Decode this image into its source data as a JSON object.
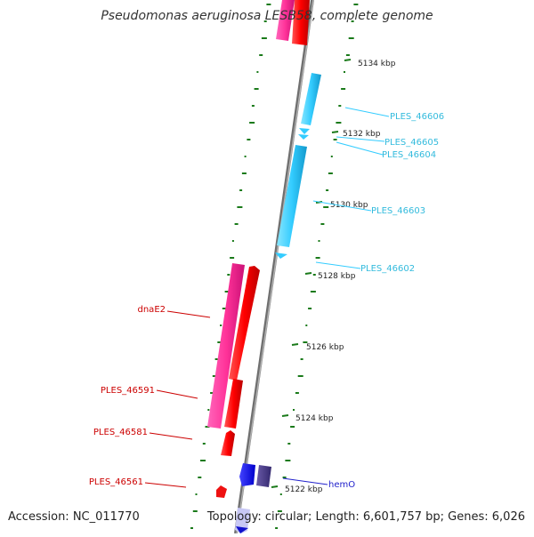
{
  "title": "Pseudomonas aeruginosa LESB58, complete genome",
  "accession": "Accession: NC_011770",
  "summary": "Topology: circular; Length: 6,601,757 bp; Genes: 6,026",
  "colors": {
    "backbone": "#888888",
    "ticks_green": "#1a7a1a",
    "forward_gene": "#ff0000",
    "forward_cds": "#ff3399",
    "reverse_cds": "#33ccff",
    "reverse_label": "#33bbdd",
    "forward_label": "#cc0000",
    "hemO": "#2222cc"
  },
  "scale_labels": [
    "5134 kbp",
    "5132 kbp",
    "5130 kbp",
    "5128 kbp",
    "5126 kbp",
    "5124 kbp",
    "5122 kbp"
  ],
  "gene_labels_right": [
    "PLES_46606",
    "PLES_46605",
    "PLES_46604",
    "PLES_46603",
    "PLES_46602",
    "hemO"
  ],
  "gene_labels_left": [
    "dnaE2",
    "PLES_46591",
    "PLES_46581",
    "PLES_46561"
  ]
}
